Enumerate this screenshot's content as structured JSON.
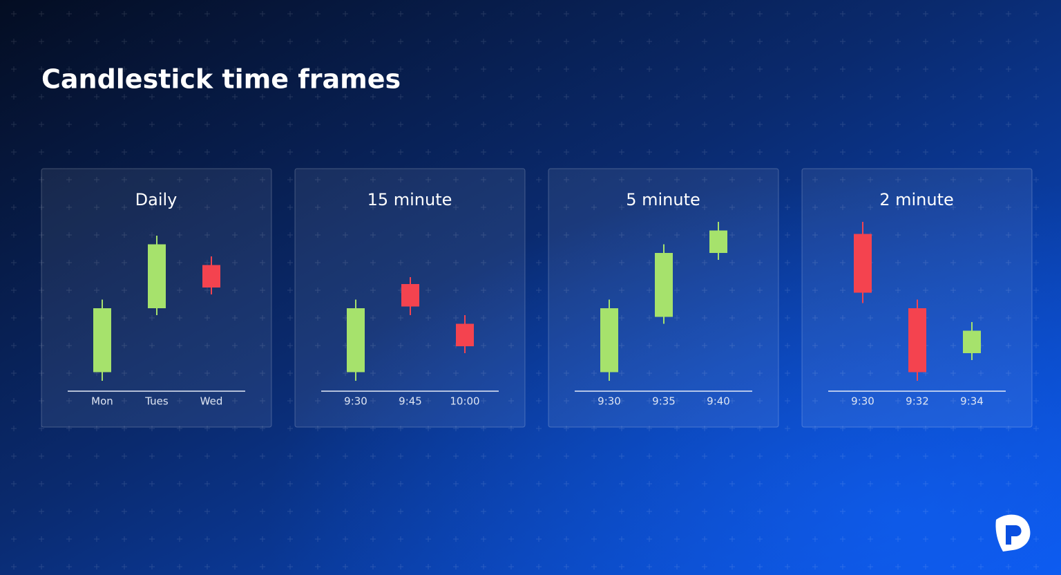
{
  "header": {
    "title": "Candlestick time frames"
  },
  "chart_data": [
    {
      "type": "candlestick",
      "title": "Daily",
      "categories": [
        "Mon",
        "Tues",
        "Wed"
      ],
      "open": [
        11,
        48,
        73
      ],
      "high": [
        53,
        90,
        78
      ],
      "low": [
        6,
        44,
        56
      ],
      "close": [
        48,
        85,
        60
      ],
      "ylim": [
        0,
        100
      ],
      "up_color": "#a6e26c",
      "down_color": "#f4434f"
    },
    {
      "type": "candlestick",
      "title": "15 minute",
      "categories": [
        "9:30",
        "9:45",
        "10:00"
      ],
      "open": [
        11,
        62,
        39
      ],
      "high": [
        53,
        66,
        44
      ],
      "low": [
        6,
        44,
        22
      ],
      "close": [
        48,
        49,
        26
      ],
      "ylim": [
        0,
        100
      ],
      "up_color": "#a6e26c",
      "down_color": "#f4434f"
    },
    {
      "type": "candlestick",
      "title": "5 minute",
      "categories": [
        "9:30",
        "9:35",
        "9:40"
      ],
      "open": [
        11,
        43,
        80
      ],
      "high": [
        53,
        85,
        98
      ],
      "low": [
        6,
        39,
        76
      ],
      "close": [
        48,
        80,
        93
      ],
      "ylim": [
        0,
        100
      ],
      "up_color": "#a6e26c",
      "down_color": "#f4434f"
    },
    {
      "type": "candlestick",
      "title": "2 minute",
      "categories": [
        "9:30",
        "9:32",
        "9:34"
      ],
      "open": [
        91,
        48,
        22
      ],
      "high": [
        98,
        53,
        40
      ],
      "low": [
        51,
        6,
        18
      ],
      "close": [
        57,
        11,
        35
      ],
      "ylim": [
        0,
        100
      ],
      "up_color": "#a6e26c",
      "down_color": "#f4434f"
    }
  ]
}
